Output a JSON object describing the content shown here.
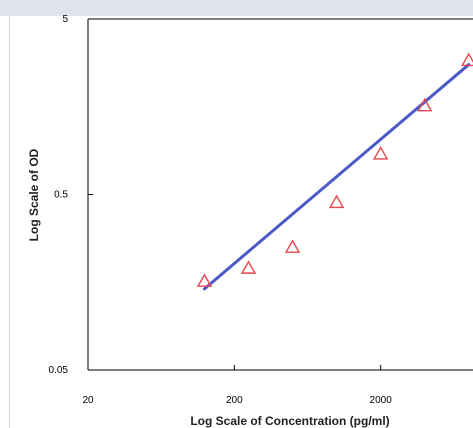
{
  "chart_data": {
    "type": "scatter",
    "title": "",
    "xlabel": "Log Scale of Concentration (pg/ml)",
    "ylabel": "Log Scale of OD",
    "x_scale": "log",
    "y_scale": "log",
    "xlim": [
      20,
      20000
    ],
    "ylim": [
      0.05,
      5
    ],
    "x_ticks": [
      20,
      200,
      2000
    ],
    "x_tick_labels": [
      "20",
      "200",
      "2000"
    ],
    "y_ticks": [
      0.05,
      0.5,
      5
    ],
    "y_tick_labels": [
      "0.05",
      "0.5",
      "5"
    ],
    "grid": false,
    "legend": "none",
    "series": [
      {
        "kind": "points",
        "marker": "open-triangle",
        "color": "#e8474f",
        "points": [
          {
            "x": 125,
            "y": 0.16
          },
          {
            "x": 250,
            "y": 0.19
          },
          {
            "x": 500,
            "y": 0.25
          },
          {
            "x": 1000,
            "y": 0.45
          },
          {
            "x": 2000,
            "y": 0.85
          },
          {
            "x": 4000,
            "y": 1.6
          },
          {
            "x": 8000,
            "y": 2.9
          }
        ]
      },
      {
        "kind": "fit-line",
        "color": "#4a58c8",
        "points": [
          {
            "x": 125,
            "y": 0.145
          },
          {
            "x": 8000,
            "y": 2.75
          }
        ]
      }
    ]
  }
}
